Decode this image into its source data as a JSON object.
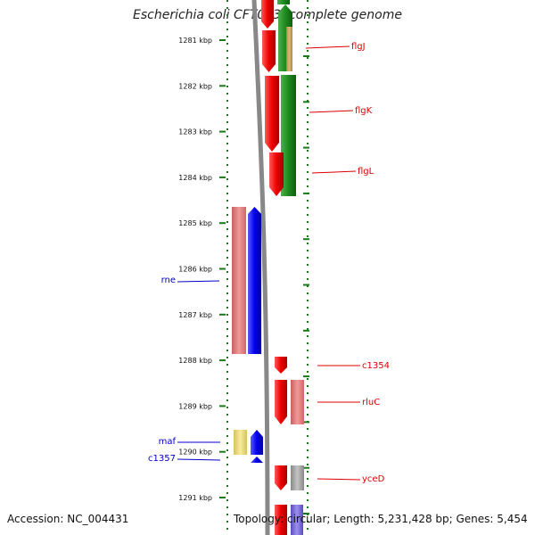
{
  "title": "Escherichia coli CFT073, complete genome",
  "footer": {
    "accession": "Accession: NC_004431",
    "summary": "Topology: circular; Length: 5,231,428 bp; Genes: 5,454"
  },
  "colors": {
    "forward": "#dd0000",
    "reverse": "#0000ee",
    "green": "#1f8a1f",
    "pink": "#e07878",
    "tan": "#c2a35c",
    "gray": "#999999",
    "yellow": "#f0e08a",
    "violet": "#7a6bd6",
    "tick": "#1a7a1a",
    "backbone": "#888888"
  },
  "ticks": [
    {
      "label": "1281 kbp",
      "kbp": 1281
    },
    {
      "label": "1282 kbp",
      "kbp": 1282
    },
    {
      "label": "1283 kbp",
      "kbp": 1283
    },
    {
      "label": "1284 kbp",
      "kbp": 1284
    },
    {
      "label": "1285 kbp",
      "kbp": 1285
    },
    {
      "label": "1286 kbp",
      "kbp": 1286
    },
    {
      "label": "1287 kbp",
      "kbp": 1287
    },
    {
      "label": "1288 kbp",
      "kbp": 1288
    },
    {
      "label": "1289 kbp",
      "kbp": 1289
    },
    {
      "label": "1290 kbp",
      "kbp": 1290
    },
    {
      "label": "1291 kbp",
      "kbp": 1291
    }
  ],
  "gene_labels": [
    {
      "text": "flgJ",
      "strand": "forward"
    },
    {
      "text": "flgK",
      "strand": "forward"
    },
    {
      "text": "flgL",
      "strand": "forward"
    },
    {
      "text": "c1354",
      "strand": "forward"
    },
    {
      "text": "rluC",
      "strand": "forward"
    },
    {
      "text": "yceD",
      "strand": "forward"
    },
    {
      "text": "rne",
      "strand": "reverse"
    },
    {
      "text": "maf",
      "strand": "reverse"
    },
    {
      "text": "c1357",
      "strand": "reverse"
    }
  ]
}
